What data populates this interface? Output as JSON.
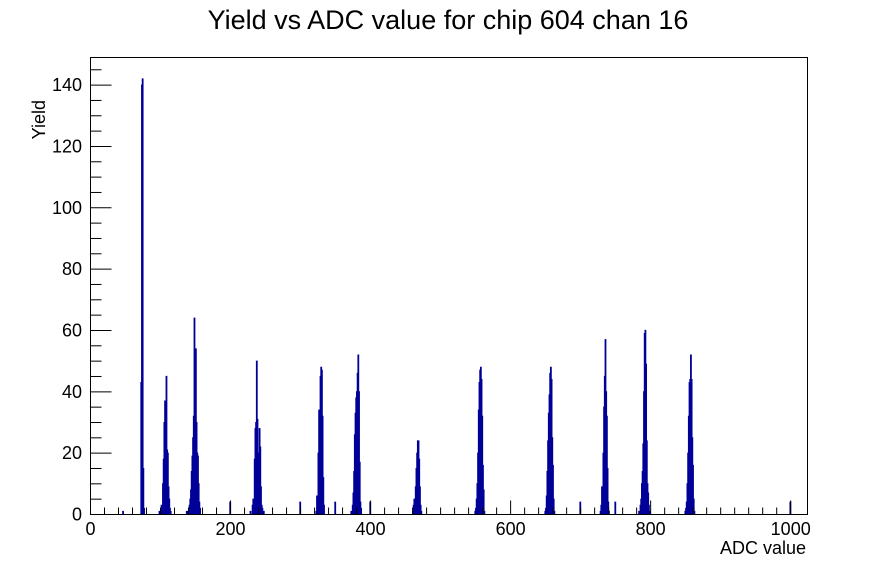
{
  "chart_data": {
    "type": "bar",
    "title": "Yield vs ADC value for chip 604 chan 16",
    "xlabel": "ADC value",
    "ylabel": "Yield",
    "xlim": [
      0,
      1024
    ],
    "ylim": [
      0,
      149
    ],
    "x_ticks": [
      "0",
      "200",
      "400",
      "600",
      "800",
      "1000"
    ],
    "y_ticks": [
      "0",
      "20",
      "40",
      "60",
      "80",
      "100",
      "120",
      "140"
    ],
    "line_color": "#000099",
    "grid": false,
    "legend": "none",
    "bins": [
      [
        46,
        1
      ],
      [
        72,
        43
      ],
      [
        73,
        140
      ],
      [
        74,
        142
      ],
      [
        75,
        15
      ],
      [
        76,
        2
      ],
      [
        98,
        1
      ],
      [
        101,
        3
      ],
      [
        103,
        10
      ],
      [
        104,
        18
      ],
      [
        105,
        30
      ],
      [
        106,
        37
      ],
      [
        107,
        30
      ],
      [
        108,
        45
      ],
      [
        109,
        21
      ],
      [
        110,
        20
      ],
      [
        111,
        9
      ],
      [
        112,
        5
      ],
      [
        113,
        2
      ],
      [
        114,
        1
      ],
      [
        137,
        1
      ],
      [
        139,
        1
      ],
      [
        141,
        3
      ],
      [
        142,
        5
      ],
      [
        143,
        8
      ],
      [
        144,
        14
      ],
      [
        145,
        19
      ],
      [
        146,
        25
      ],
      [
        147,
        32
      ],
      [
        148,
        64
      ],
      [
        149,
        41
      ],
      [
        150,
        54
      ],
      [
        151,
        30
      ],
      [
        152,
        20
      ],
      [
        153,
        19
      ],
      [
        154,
        10
      ],
      [
        155,
        4
      ],
      [
        156,
        2
      ],
      [
        199,
        4
      ],
      [
        228,
        1
      ],
      [
        231,
        3
      ],
      [
        232,
        5
      ],
      [
        233,
        4
      ],
      [
        234,
        18
      ],
      [
        235,
        28
      ],
      [
        236,
        30
      ],
      [
        237,
        50
      ],
      [
        238,
        31
      ],
      [
        239,
        20
      ],
      [
        240,
        18
      ],
      [
        241,
        28
      ],
      [
        242,
        22
      ],
      [
        243,
        9
      ],
      [
        244,
        3
      ],
      [
        245,
        2
      ],
      [
        247,
        1
      ],
      [
        299,
        4
      ],
      [
        322,
        1
      ],
      [
        323,
        6
      ],
      [
        324,
        5
      ],
      [
        325,
        20
      ],
      [
        326,
        34
      ],
      [
        327,
        33
      ],
      [
        328,
        45
      ],
      [
        329,
        48
      ],
      [
        330,
        47
      ],
      [
        331,
        32
      ],
      [
        332,
        12
      ],
      [
        333,
        3
      ],
      [
        349,
        4
      ],
      [
        372,
        1
      ],
      [
        374,
        3
      ],
      [
        375,
        7
      ],
      [
        376,
        14
      ],
      [
        377,
        26
      ],
      [
        378,
        33
      ],
      [
        379,
        38
      ],
      [
        380,
        40
      ],
      [
        381,
        46
      ],
      [
        382,
        52
      ],
      [
        383,
        40
      ],
      [
        384,
        17
      ],
      [
        385,
        4
      ],
      [
        386,
        2
      ],
      [
        399,
        4
      ],
      [
        460,
        1
      ],
      [
        461,
        3
      ],
      [
        462,
        5
      ],
      [
        463,
        4
      ],
      [
        464,
        9
      ],
      [
        465,
        15
      ],
      [
        466,
        20
      ],
      [
        467,
        24
      ],
      [
        468,
        24
      ],
      [
        469,
        18
      ],
      [
        470,
        9
      ],
      [
        471,
        3
      ],
      [
        472,
        1
      ],
      [
        549,
        1
      ],
      [
        550,
        2
      ],
      [
        551,
        5
      ],
      [
        552,
        10
      ],
      [
        553,
        20
      ],
      [
        554,
        34
      ],
      [
        555,
        43
      ],
      [
        556,
        47
      ],
      [
        557,
        48
      ],
      [
        558,
        44
      ],
      [
        559,
        32
      ],
      [
        560,
        16
      ],
      [
        561,
        8
      ],
      [
        562,
        1
      ],
      [
        649,
        1
      ],
      [
        650,
        2
      ],
      [
        651,
        6
      ],
      [
        652,
        14
      ],
      [
        653,
        24
      ],
      [
        654,
        33
      ],
      [
        655,
        39
      ],
      [
        656,
        46
      ],
      [
        657,
        48
      ],
      [
        658,
        44
      ],
      [
        659,
        25
      ],
      [
        660,
        16
      ],
      [
        661,
        5
      ],
      [
        662,
        1
      ],
      [
        699,
        4
      ],
      [
        728,
        1
      ],
      [
        729,
        3
      ],
      [
        730,
        9
      ],
      [
        731,
        5
      ],
      [
        732,
        20
      ],
      [
        733,
        35
      ],
      [
        734,
        45
      ],
      [
        735,
        57
      ],
      [
        736,
        40
      ],
      [
        737,
        32
      ],
      [
        738,
        15
      ],
      [
        739,
        4
      ],
      [
        740,
        1
      ],
      [
        749,
        4
      ],
      [
        783,
        1
      ],
      [
        785,
        3
      ],
      [
        786,
        5
      ],
      [
        787,
        10
      ],
      [
        788,
        14
      ],
      [
        789,
        23
      ],
      [
        790,
        40
      ],
      [
        791,
        59
      ],
      [
        792,
        60
      ],
      [
        793,
        49
      ],
      [
        794,
        24
      ],
      [
        795,
        10
      ],
      [
        796,
        7
      ],
      [
        797,
        3
      ],
      [
        798,
        1
      ],
      [
        849,
        1
      ],
      [
        850,
        2
      ],
      [
        851,
        4
      ],
      [
        852,
        10
      ],
      [
        853,
        20
      ],
      [
        854,
        32
      ],
      [
        855,
        43
      ],
      [
        856,
        44
      ],
      [
        857,
        52
      ],
      [
        858,
        44
      ],
      [
        859,
        25
      ],
      [
        860,
        16
      ],
      [
        861,
        5
      ],
      [
        862,
        1
      ],
      [
        999,
        4
      ]
    ]
  }
}
